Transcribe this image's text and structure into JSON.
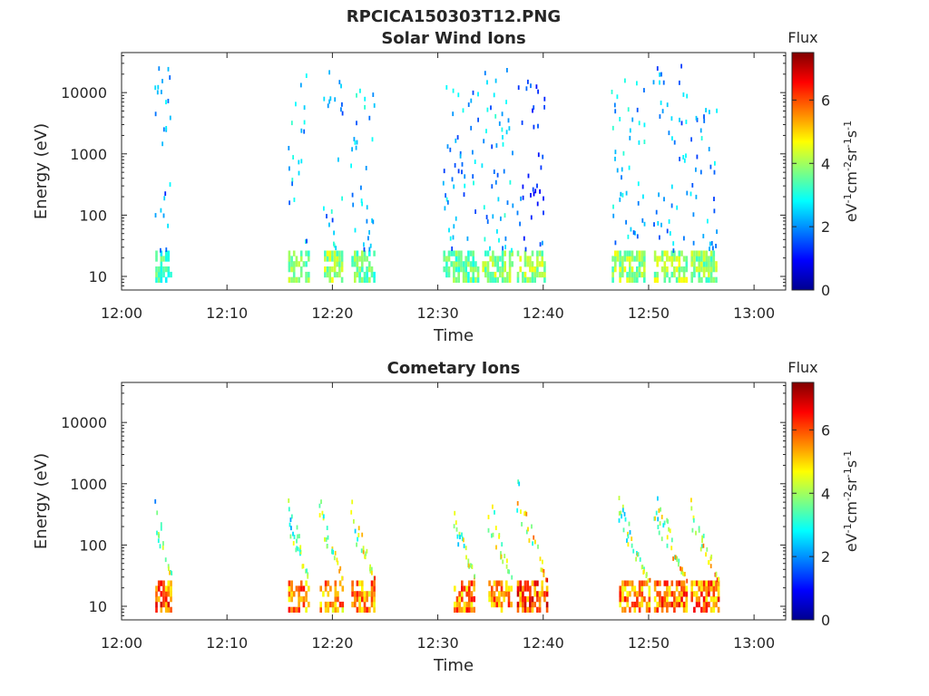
{
  "figure": {
    "title": "RPCICA150303T12.PNG"
  },
  "colors": {
    "colormap": "jet",
    "axis": "#262626",
    "background": "#ffffff"
  },
  "chart_data": [
    {
      "type": "heatmap",
      "title": "Solar Wind Ions",
      "xlabel": "Time",
      "ylabel": "Energy (eV)",
      "x_ticks": [
        "12:00",
        "12:10",
        "12:20",
        "12:30",
        "12:40",
        "12:50",
        "13:00"
      ],
      "x_tick_minutes": [
        0,
        10,
        20,
        30,
        40,
        50,
        60
      ],
      "xlim_minutes": [
        0,
        63
      ],
      "y_scale": "log",
      "ylim": [
        6,
        45000
      ],
      "y_ticks": [
        "10",
        "100",
        "1000",
        "10000"
      ],
      "y_tick_values": [
        10,
        100,
        1000,
        10000
      ],
      "colorbar": {
        "title": "Flux",
        "label": "eV-1cm-2sr-1s-1",
        "ticks": [
          "0",
          "2",
          "4",
          "6"
        ],
        "range": [
          0,
          7.5
        ]
      },
      "bursts": [
        {
          "start_minute": 3.2,
          "end_minute": 4.8,
          "energy_range_eV": [
            8,
            28000
          ],
          "low_energy_flux": 3.5,
          "scatter_flux": 2.0
        },
        {
          "start_minute": 15.8,
          "end_minute": 17.8,
          "energy_range_eV": [
            8,
            20000
          ],
          "low_energy_flux": 4.0,
          "scatter_flux": 2.3
        },
        {
          "start_minute": 19.2,
          "end_minute": 21.0,
          "energy_range_eV": [
            8,
            26000
          ],
          "low_energy_flux": 4.3,
          "scatter_flux": 2.3
        },
        {
          "start_minute": 21.8,
          "end_minute": 24.0,
          "energy_range_eV": [
            8,
            15000
          ],
          "low_energy_flux": 3.8,
          "scatter_flux": 2.4
        },
        {
          "start_minute": 30.5,
          "end_minute": 33.8,
          "energy_range_eV": [
            8,
            15000
          ],
          "low_energy_flux": 3.8,
          "scatter_flux": 2.2
        },
        {
          "start_minute": 34.2,
          "end_minute": 37.0,
          "energy_range_eV": [
            8,
            24000
          ],
          "low_energy_flux": 4.2,
          "scatter_flux": 2.3
        },
        {
          "start_minute": 37.5,
          "end_minute": 40.2,
          "energy_range_eV": [
            8,
            15000
          ],
          "low_energy_flux": 4.3,
          "scatter_flux": 1.5
        },
        {
          "start_minute": 46.5,
          "end_minute": 49.5,
          "energy_range_eV": [
            8,
            15000
          ],
          "low_energy_flux": 4.3,
          "scatter_flux": 2.3
        },
        {
          "start_minute": 50.5,
          "end_minute": 53.5,
          "energy_range_eV": [
            8,
            26000
          ],
          "low_energy_flux": 4.3,
          "scatter_flux": 2.0
        },
        {
          "start_minute": 54.0,
          "end_minute": 56.3,
          "energy_range_eV": [
            8,
            6000
          ],
          "low_energy_flux": 4.1,
          "scatter_flux": 2.2
        }
      ]
    },
    {
      "type": "heatmap",
      "title": "Cometary Ions",
      "xlabel": "Time",
      "ylabel": "Energy (eV)",
      "x_ticks": [
        "12:00",
        "12:10",
        "12:20",
        "12:30",
        "12:40",
        "12:50",
        "13:00"
      ],
      "x_tick_minutes": [
        0,
        10,
        20,
        30,
        40,
        50,
        60
      ],
      "xlim_minutes": [
        0,
        63
      ],
      "y_scale": "log",
      "ylim": [
        6,
        45000
      ],
      "y_ticks": [
        "10",
        "100",
        "1000",
        "10000"
      ],
      "y_tick_values": [
        10,
        100,
        1000,
        10000
      ],
      "colorbar": {
        "title": "Flux",
        "label": "eV-1cm-2sr-1s-1",
        "ticks": [
          "0",
          "2",
          "4",
          "6"
        ],
        "range": [
          0,
          7.5
        ]
      },
      "bursts": [
        {
          "start_minute": 3.2,
          "end_minute": 4.8,
          "energy_range_eV": [
            8,
            500
          ],
          "low_energy_flux": 6.3,
          "scatter_flux": 3.0
        },
        {
          "start_minute": 15.8,
          "end_minute": 17.8,
          "energy_range_eV": [
            8,
            600
          ],
          "low_energy_flux": 6.0,
          "scatter_flux": 3.2
        },
        {
          "start_minute": 18.8,
          "end_minute": 21.0,
          "energy_range_eV": [
            8,
            550
          ],
          "low_energy_flux": 5.8,
          "scatter_flux": 3.4
        },
        {
          "start_minute": 21.8,
          "end_minute": 24.0,
          "energy_range_eV": [
            8,
            500
          ],
          "low_energy_flux": 5.9,
          "scatter_flux": 3.6
        },
        {
          "start_minute": 31.5,
          "end_minute": 33.5,
          "energy_range_eV": [
            8,
            550
          ],
          "low_energy_flux": 6.0,
          "scatter_flux": 3.3
        },
        {
          "start_minute": 34.8,
          "end_minute": 37.0,
          "energy_range_eV": [
            8,
            700
          ],
          "low_energy_flux": 6.1,
          "scatter_flux": 3.5
        },
        {
          "start_minute": 37.5,
          "end_minute": 40.3,
          "energy_range_eV": [
            8,
            1500
          ],
          "low_energy_flux": 6.4,
          "scatter_flux": 4.0
        },
        {
          "start_minute": 47.2,
          "end_minute": 50.0,
          "energy_range_eV": [
            8,
            600
          ],
          "low_energy_flux": 6.0,
          "scatter_flux": 3.4
        },
        {
          "start_minute": 50.5,
          "end_minute": 53.5,
          "energy_range_eV": [
            8,
            1000
          ],
          "low_energy_flux": 6.2,
          "scatter_flux": 3.7
        },
        {
          "start_minute": 54.0,
          "end_minute": 56.6,
          "energy_range_eV": [
            8,
            600
          ],
          "low_energy_flux": 6.1,
          "scatter_flux": 3.8
        }
      ]
    }
  ]
}
